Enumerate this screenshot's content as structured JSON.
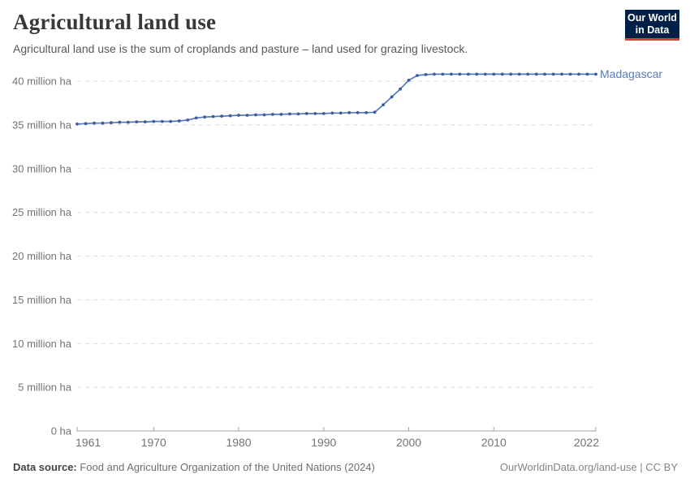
{
  "header": {
    "title": "Agricultural land use",
    "subtitle": "Agricultural land use is the sum of croplands and pasture – land used for grazing livestock."
  },
  "logo": {
    "line1": "Our World",
    "line2": "in Data",
    "bg_color": "#002147",
    "accent_color": "#d7413a"
  },
  "chart_data": {
    "type": "line",
    "title": "Agricultural land use",
    "unit": "million ha",
    "grid": "horizontal-dashed",
    "legend_position": "right-of-line-end",
    "xlim": [
      1961,
      2022
    ],
    "ylim": [
      0,
      40
    ],
    "yticks": [
      {
        "value": 0,
        "label": "0 ha"
      },
      {
        "value": 5,
        "label": "5 million ha"
      },
      {
        "value": 10,
        "label": "10 million ha"
      },
      {
        "value": 15,
        "label": "15 million ha"
      },
      {
        "value": 20,
        "label": "20 million ha"
      },
      {
        "value": 25,
        "label": "25 million ha"
      },
      {
        "value": 30,
        "label": "30 million ha"
      },
      {
        "value": 35,
        "label": "35 million ha"
      },
      {
        "value": 40,
        "label": "40 million ha"
      }
    ],
    "xticks": [
      {
        "year": 1961,
        "label": "1961",
        "align": "start"
      },
      {
        "year": 1970,
        "label": "1970",
        "align": "middle"
      },
      {
        "year": 1980,
        "label": "1980",
        "align": "middle"
      },
      {
        "year": 1990,
        "label": "1990",
        "align": "middle"
      },
      {
        "year": 2000,
        "label": "2000",
        "align": "middle"
      },
      {
        "year": 2010,
        "label": "2010",
        "align": "middle"
      },
      {
        "year": 2022,
        "label": "2022",
        "align": "end"
      }
    ],
    "x": [
      1961,
      1962,
      1963,
      1964,
      1965,
      1966,
      1967,
      1968,
      1969,
      1970,
      1971,
      1972,
      1973,
      1974,
      1975,
      1976,
      1977,
      1978,
      1979,
      1980,
      1981,
      1982,
      1983,
      1984,
      1985,
      1986,
      1987,
      1988,
      1989,
      1990,
      1991,
      1992,
      1993,
      1994,
      1995,
      1996,
      1997,
      1998,
      1999,
      2000,
      2001,
      2002,
      2003,
      2004,
      2005,
      2006,
      2007,
      2008,
      2009,
      2010,
      2011,
      2012,
      2013,
      2014,
      2015,
      2016,
      2017,
      2018,
      2019,
      2020,
      2021,
      2022
    ],
    "series": [
      {
        "name": "Madagascar",
        "line_color": "#5879b7",
        "dot_color": "#3d5c9e",
        "values": [
          35.1,
          35.15,
          35.2,
          35.2,
          35.25,
          35.3,
          35.3,
          35.35,
          35.35,
          35.4,
          35.4,
          35.4,
          35.45,
          35.55,
          35.8,
          35.9,
          35.95,
          36.0,
          36.05,
          36.1,
          36.1,
          36.15,
          36.15,
          36.2,
          36.2,
          36.25,
          36.25,
          36.3,
          36.3,
          36.3,
          36.35,
          36.35,
          36.4,
          36.4,
          36.4,
          36.45,
          37.3,
          38.2,
          39.1,
          40.1,
          40.65,
          40.75,
          40.8,
          40.8,
          40.8,
          40.8,
          40.8,
          40.8,
          40.8,
          40.8,
          40.8,
          40.8,
          40.8,
          40.8,
          40.8,
          40.8,
          40.8,
          40.8,
          40.8,
          40.8,
          40.8,
          40.8
        ]
      }
    ],
    "colors": {
      "gridline": "#dcdcdc",
      "axis": "#a3a3a3",
      "tick_label": "#737373"
    }
  },
  "footer": {
    "source_label": "Data source:",
    "source_text": " Food and Agriculture Organization of the United Nations (2024)",
    "link_text": "OurWorldinData.org/land-use | CC BY"
  }
}
